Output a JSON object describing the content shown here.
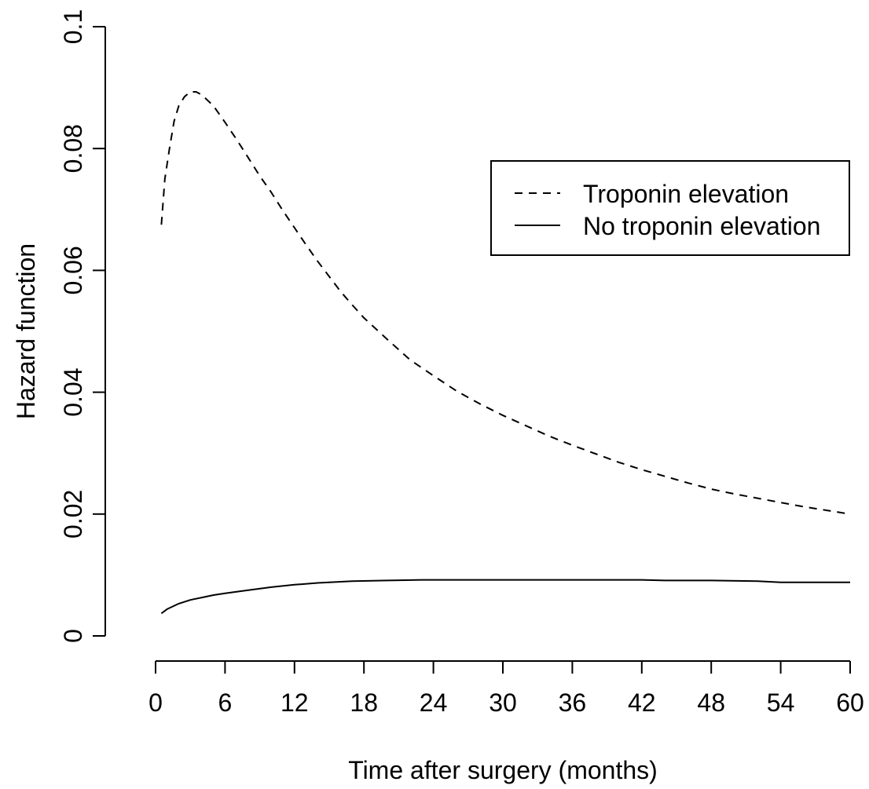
{
  "chart_data": {
    "type": "line",
    "title": "",
    "xlabel": "Time after surgery (months)",
    "ylabel": "Hazard function",
    "xlim": [
      0,
      60
    ],
    "ylim": [
      0,
      0.1
    ],
    "xticks": [
      0,
      6,
      12,
      18,
      24,
      30,
      36,
      42,
      48,
      54,
      60
    ],
    "xtick_labels": [
      "0",
      "6",
      "12",
      "18",
      "24",
      "30",
      "36",
      "42",
      "48",
      "54",
      "60"
    ],
    "yticks": [
      0,
      0.02,
      0.04,
      0.06,
      0.08,
      0.1
    ],
    "ytick_labels": [
      "0",
      "0.02",
      "0.04",
      "0.06",
      "0.08",
      "0.1"
    ],
    "grid": false,
    "legend_position": "top-right",
    "series": [
      {
        "name": "Troponin elevation",
        "line_style": "dashed",
        "color": "#000000",
        "x": [
          0.5,
          0.8,
          1.2,
          1.6,
          2,
          2.5,
          3,
          3.5,
          4,
          5,
          6,
          7,
          8,
          9,
          10,
          11,
          12,
          13,
          14,
          15,
          16,
          17,
          18,
          20,
          22,
          24,
          26,
          28,
          30,
          32,
          34,
          36,
          38,
          40,
          42,
          44,
          46,
          48,
          50,
          52,
          54,
          56,
          58,
          60
        ],
        "y": [
          0.0675,
          0.075,
          0.08,
          0.0845,
          0.087,
          0.0885,
          0.0893,
          0.0893,
          0.0888,
          0.087,
          0.0843,
          0.0815,
          0.0785,
          0.0755,
          0.0728,
          0.0698,
          0.067,
          0.0642,
          0.0615,
          0.059,
          0.0565,
          0.0543,
          0.0522,
          0.0487,
          0.0453,
          0.0427,
          0.0402,
          0.0381,
          0.0362,
          0.0345,
          0.0328,
          0.0313,
          0.0299,
          0.0285,
          0.0273,
          0.0262,
          0.0251,
          0.0241,
          0.0233,
          0.0226,
          0.0219,
          0.0212,
          0.0206,
          0.02
        ]
      },
      {
        "name": "No troponin elevation",
        "line_style": "solid",
        "color": "#000000",
        "x": [
          0.5,
          1,
          2,
          3,
          4,
          5,
          6,
          8,
          10,
          12,
          14,
          17,
          20,
          23,
          26,
          30,
          36,
          42,
          44,
          48,
          52,
          54,
          57,
          60
        ],
        "y": [
          0.0037,
          0.0044,
          0.0053,
          0.0059,
          0.0063,
          0.0067,
          0.007,
          0.0075,
          0.008,
          0.0084,
          0.0087,
          0.009,
          0.0091,
          0.0092,
          0.0092,
          0.0092,
          0.0092,
          0.0092,
          0.0091,
          0.0091,
          0.009,
          0.0088,
          0.0088,
          0.0088
        ]
      }
    ]
  }
}
